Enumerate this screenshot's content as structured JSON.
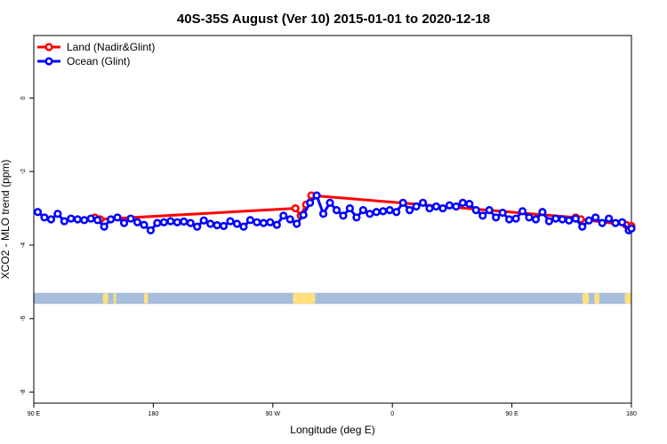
{
  "chart_data": {
    "type": "line",
    "title": "40S-35S August (Ver 10)   2015-01-01 to 2020-12-18",
    "xlabel": "Longitude (deg E)",
    "ylabel": "XCO2 - MLO trend (ppm)",
    "xlim": [
      90,
      540
    ],
    "ylim": [
      -8.3,
      1.7
    ],
    "xticks": [
      {
        "value": 90,
        "label": "90 E"
      },
      {
        "value": 180,
        "label": "180"
      },
      {
        "value": 270,
        "label": "90 W"
      },
      {
        "value": 360,
        "label": "0"
      },
      {
        "value": 450,
        "label": "90 E"
      },
      {
        "value": 540,
        "label": "180"
      }
    ],
    "yticks": [
      {
        "value": 0,
        "label": "0"
      },
      {
        "value": -2,
        "label": "-2"
      },
      {
        "value": -4,
        "label": "-4"
      },
      {
        "value": -6,
        "label": "-6"
      },
      {
        "value": -8,
        "label": "-8"
      }
    ],
    "legend_position": "top-left",
    "land_band": {
      "y_top": -5.3,
      "y_bottom": -5.6,
      "color": "#a6bddb",
      "land_color": "#ffe080",
      "land_segments": [
        [
          142,
          146
        ],
        [
          150,
          152
        ],
        [
          173,
          176
        ],
        [
          285,
          302
        ],
        [
          503,
          508
        ],
        [
          512,
          516
        ],
        [
          535,
          540
        ]
      ]
    },
    "series": [
      {
        "name": "Land (Nadir&Glint)",
        "color": "#ff0000",
        "x": [
          136,
          140,
          287,
          291,
          295,
          299,
          498,
          502,
          536,
          540
        ],
        "y": [
          -3.25,
          -3.3,
          -3.0,
          -3.2,
          -2.9,
          -2.65,
          -3.25,
          -3.3,
          -3.45,
          -3.48
        ]
      },
      {
        "name": "Ocean (Glint)",
        "color": "#0000ff",
        "x": [
          93,
          98,
          103,
          108,
          113,
          118,
          123,
          128,
          133,
          138,
          143,
          148,
          153,
          158,
          163,
          168,
          173,
          178,
          183,
          188,
          193,
          198,
          203,
          208,
          213,
          218,
          223,
          228,
          233,
          238,
          243,
          248,
          253,
          258,
          263,
          268,
          273,
          278,
          283,
          288,
          293,
          298,
          303,
          308,
          313,
          318,
          323,
          328,
          333,
          338,
          343,
          348,
          353,
          358,
          363,
          368,
          373,
          378,
          383,
          388,
          393,
          398,
          403,
          408,
          413,
          418,
          423,
          428,
          433,
          438,
          443,
          448,
          453,
          458,
          463,
          468,
          473,
          478,
          483,
          488,
          493,
          498,
          503,
          508,
          513,
          518,
          523,
          528,
          533,
          538,
          540
        ],
        "y": [
          -3.1,
          -3.25,
          -3.3,
          -3.15,
          -3.35,
          -3.28,
          -3.3,
          -3.32,
          -3.28,
          -3.32,
          -3.5,
          -3.3,
          -3.25,
          -3.4,
          -3.28,
          -3.38,
          -3.45,
          -3.6,
          -3.4,
          -3.38,
          -3.35,
          -3.38,
          -3.36,
          -3.4,
          -3.5,
          -3.33,
          -3.42,
          -3.46,
          -3.48,
          -3.35,
          -3.42,
          -3.5,
          -3.32,
          -3.38,
          -3.4,
          -3.38,
          -3.45,
          -3.2,
          -3.3,
          -3.42,
          -3.18,
          -2.85,
          -2.65,
          -3.15,
          -2.85,
          -3.05,
          -3.2,
          -3.0,
          -3.25,
          -3.05,
          -3.15,
          -3.1,
          -3.08,
          -3.05,
          -3.1,
          -2.85,
          -3.05,
          -2.95,
          -2.85,
          -3.0,
          -2.95,
          -3.0,
          -2.92,
          -2.95,
          -2.85,
          -2.88,
          -3.05,
          -3.2,
          -3.05,
          -3.25,
          -3.12,
          -3.3,
          -3.28,
          -3.08,
          -3.25,
          -3.3,
          -3.1,
          -3.35,
          -3.28,
          -3.3,
          -3.33,
          -3.28,
          -3.5,
          -3.33,
          -3.25,
          -3.4,
          -3.28,
          -3.4,
          -3.38,
          -3.6,
          -3.55
        ]
      }
    ]
  }
}
